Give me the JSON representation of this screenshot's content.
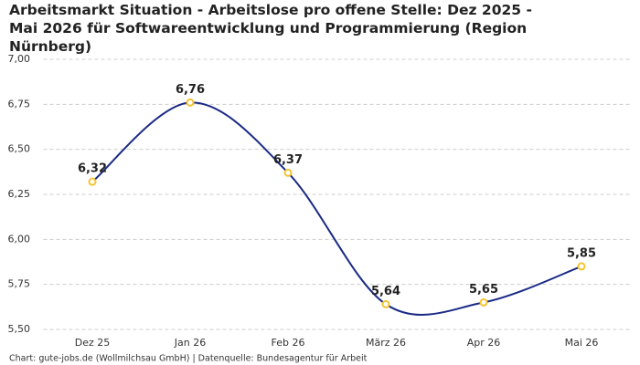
{
  "chart_data": {
    "type": "line",
    "title": "Arbeitsmarkt Situation - Arbeitslose pro offene Stelle: Dez 2025 - Mai 2026 für Softwareentwicklung und Programmierung (Region Nürnberg)",
    "source": "Chart: gute-jobs.de (Wollmilchsau GmbH) | Datenquelle: Bundesagentur für Arbeit",
    "categories": [
      "Dez 25",
      "Jan 26",
      "Feb 26",
      "März 26",
      "Apr 26",
      "Mai 26"
    ],
    "values": [
      6.32,
      6.76,
      6.37,
      5.64,
      5.65,
      5.85
    ],
    "value_labels": [
      "6,32",
      "6,76",
      "6,37",
      "5,64",
      "5,65",
      "5,85"
    ],
    "color": "#1a2a85",
    "marker_color": "#f5c431",
    "ylim": [
      5.5,
      7.0
    ],
    "yticks": [
      {
        "value": 5.5,
        "label": "5,50"
      },
      {
        "value": 5.75,
        "label": "5,75"
      },
      {
        "value": 6.0,
        "label": "6,00"
      },
      {
        "value": 6.25,
        "label": "6,25"
      },
      {
        "value": 6.5,
        "label": "6,50"
      },
      {
        "value": 6.75,
        "label": "6,75"
      },
      {
        "value": 7.0,
        "label": "7,00"
      }
    ],
    "grid": true
  }
}
